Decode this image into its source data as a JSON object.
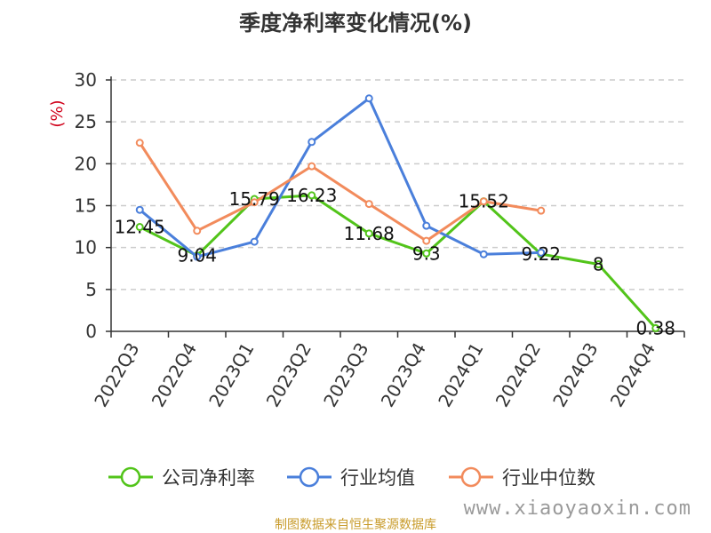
{
  "title": "季度净利率变化情况(%)",
  "source_note": "制图数据来自恒生聚源数据库",
  "watermark": "www.xiaoyaoxin.com",
  "chart_data": {
    "type": "line",
    "title": "季度净利率变化情况(%)",
    "ylabel": "(%)",
    "ylabel_color": "#d0021b",
    "categories": [
      "2022Q3",
      "2022Q4",
      "2023Q1",
      "2023Q2",
      "2023Q3",
      "2023Q4",
      "2024Q1",
      "2024Q2",
      "2024Q3",
      "2024Q4"
    ],
    "ylim": [
      0,
      30
    ],
    "yticks": [
      0,
      5,
      10,
      15,
      20,
      25,
      30
    ],
    "grid": true,
    "legend_position": "bottom",
    "series": [
      {
        "name": "公司净利率",
        "color": "#52c41a",
        "values": [
          12.45,
          9.04,
          15.79,
          16.23,
          11.68,
          9.3,
          15.52,
          9.22,
          8,
          0.38
        ],
        "labels": [
          "12.45",
          "9.04",
          "15.79",
          "16.23",
          "11.68",
          "9.3",
          "15.52",
          "9.22",
          "8",
          "0.38"
        ]
      },
      {
        "name": "行业均值",
        "color": "#4a7fdb",
        "values": [
          14.5,
          8.9,
          10.7,
          22.6,
          27.8,
          12.6,
          9.2,
          9.4,
          null,
          null
        ]
      },
      {
        "name": "行业中位数",
        "color": "#f28b5c",
        "values": [
          22.5,
          12.0,
          15.4,
          19.7,
          15.2,
          10.8,
          15.5,
          14.4,
          null,
          null
        ]
      }
    ]
  }
}
